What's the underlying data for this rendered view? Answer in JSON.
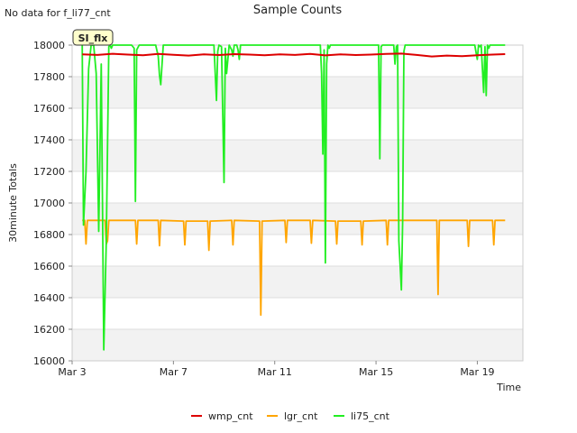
{
  "no_data_note": "No data for f_li77_cnt",
  "site_badge": "SI_flx",
  "chart_data": {
    "type": "line",
    "title": "Sample Counts",
    "xlabel": "Time",
    "ylabel": "30minute Totals",
    "xlim": [
      3,
      20.8
    ],
    "ylim": [
      16000,
      18000
    ],
    "yticks": [
      16000,
      16200,
      16400,
      16600,
      16800,
      17000,
      17200,
      17400,
      17600,
      17800,
      18000
    ],
    "xticks": [
      {
        "value": 3,
        "label": "Mar 3"
      },
      {
        "value": 7,
        "label": "Mar 7"
      },
      {
        "value": 11,
        "label": "Mar 11"
      },
      {
        "value": 15,
        "label": "Mar 15"
      },
      {
        "value": 19,
        "label": "Mar 19"
      }
    ],
    "grid": true,
    "legend": "bottom-center",
    "series": [
      {
        "name": "wmp_cnt",
        "color": "#dd0000",
        "x": [
          3.4,
          4.0,
          4.6,
          5.2,
          5.8,
          6.4,
          7.0,
          7.6,
          8.2,
          8.8,
          9.4,
          10.0,
          10.6,
          11.2,
          11.8,
          12.4,
          13.0,
          13.6,
          14.2,
          14.8,
          15.4,
          16.0,
          16.6,
          17.2,
          17.8,
          18.4,
          19.0,
          19.6,
          20.1
        ],
        "y": [
          17942,
          17938,
          17945,
          17940,
          17936,
          17944,
          17939,
          17934,
          17941,
          17937,
          17943,
          17940,
          17936,
          17942,
          17938,
          17944,
          17935,
          17941,
          17937,
          17940,
          17944,
          17946,
          17938,
          17928,
          17934,
          17930,
          17936,
          17940,
          17943
        ]
      },
      {
        "name": "lgr_cnt",
        "color": "#ffa500",
        "x": [
          3.4,
          3.5,
          3.55,
          3.6,
          4.3,
          4.35,
          4.4,
          4.45,
          5.5,
          5.55,
          5.6,
          6.4,
          6.45,
          6.5,
          7.4,
          7.45,
          7.5,
          8.35,
          8.4,
          8.45,
          9.3,
          9.35,
          9.4,
          10.4,
          10.45,
          10.5,
          11.4,
          11.45,
          11.5,
          12.4,
          12.45,
          12.5,
          13.4,
          13.45,
          13.5,
          14.4,
          14.45,
          14.5,
          15.4,
          15.45,
          15.5,
          17.4,
          17.45,
          17.5,
          18.6,
          18.65,
          18.7,
          19.6,
          19.65,
          19.7,
          20.1
        ],
        "y": [
          16890,
          16890,
          16740,
          16890,
          16890,
          16740,
          16760,
          16890,
          16890,
          16740,
          16890,
          16890,
          16730,
          16890,
          16885,
          16735,
          16885,
          16885,
          16700,
          16885,
          16890,
          16735,
          16890,
          16885,
          16290,
          16885,
          16890,
          16750,
          16890,
          16890,
          16745,
          16890,
          16885,
          16740,
          16885,
          16885,
          16735,
          16885,
          16890,
          16735,
          16890,
          16890,
          16420,
          16890,
          16890,
          16725,
          16890,
          16890,
          16735,
          16890,
          16890
        ]
      },
      {
        "name": "li75_cnt",
        "color": "#22ee22",
        "x": [
          3.4,
          3.45,
          3.55,
          3.65,
          3.75,
          3.85,
          3.95,
          4.05,
          4.15,
          4.25,
          4.35,
          4.45,
          4.5,
          4.55,
          4.6,
          4.65,
          4.75,
          5.35,
          5.45,
          5.5,
          5.55,
          5.65,
          5.7,
          6.3,
          6.4,
          6.45,
          6.5,
          6.6,
          6.7,
          8.6,
          8.7,
          8.75,
          8.8,
          8.9,
          9.0,
          9.05,
          9.1,
          9.2,
          9.3,
          9.35,
          9.4,
          9.5,
          9.55,
          9.6,
          9.65,
          12.8,
          12.85,
          12.9,
          12.95,
          13.0,
          13.05,
          13.1,
          13.15,
          13.2,
          15.1,
          15.15,
          15.2,
          15.25,
          15.3,
          15.7,
          15.75,
          15.8,
          15.85,
          15.9,
          16.0,
          16.05,
          16.1,
          16.15,
          16.2,
          18.9,
          19.0,
          19.05,
          19.1,
          19.15,
          19.25,
          19.3,
          19.35,
          19.4,
          19.45,
          19.5,
          20.1
        ],
        "y": [
          18000,
          16860,
          17200,
          17850,
          18000,
          18000,
          17820,
          16820,
          17880,
          16070,
          16760,
          17990,
          18000,
          17980,
          18000,
          18000,
          18000,
          18000,
          17980,
          17010,
          17970,
          18000,
          18000,
          18000,
          17930,
          17810,
          17750,
          18000,
          18000,
          18000,
          17650,
          17960,
          18000,
          17990,
          17130,
          17980,
          17820,
          18000,
          17970,
          17930,
          18000,
          18000,
          17970,
          17910,
          18000,
          18000,
          17820,
          17310,
          17970,
          16620,
          17880,
          18000,
          17980,
          18000,
          18000,
          17280,
          17990,
          18000,
          18000,
          18000,
          17880,
          17990,
          18000,
          16760,
          16450,
          16880,
          17960,
          18000,
          18000,
          18000,
          17910,
          18000,
          17990,
          18000,
          17700,
          17990,
          17680,
          18000,
          17980,
          18000,
          18000
        ]
      }
    ]
  }
}
